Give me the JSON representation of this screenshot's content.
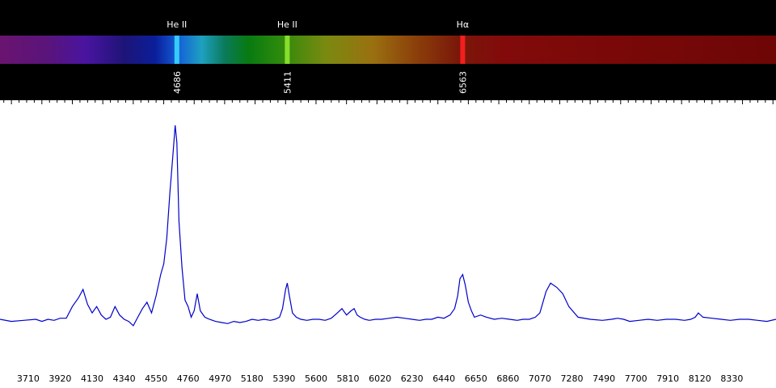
{
  "chart_data": {
    "type": "line",
    "title": "",
    "xlabel": "",
    "ylabel": "",
    "xlim": [
      3525,
      8620
    ],
    "ylim": [
      0,
      1
    ],
    "x_ticks": [
      3710,
      3920,
      4130,
      4340,
      4550,
      4760,
      4970,
      5180,
      5390,
      5600,
      5810,
      6020,
      6230,
      6440,
      6650,
      6860,
      7070,
      7280,
      7490,
      7700,
      7910,
      8120,
      8330
    ],
    "line_color": "#0000cc",
    "plot_background": "#ffffff",
    "spectrum_strip": true,
    "emission_lines": [
      {
        "name": "He II",
        "wavelength": "4686",
        "x": 4686
      },
      {
        "name": "He II",
        "wavelength": "5411",
        "x": 5411
      },
      {
        "name": "Hα",
        "wavelength": "6563",
        "x": 6563
      }
    ],
    "series": [
      {
        "x": [
          3525,
          3600,
          3680,
          3760,
          3800,
          3840,
          3880,
          3920,
          3960,
          4000,
          4040,
          4070,
          4100,
          4130,
          4160,
          4190,
          4220,
          4250,
          4280,
          4310,
          4340,
          4370,
          4400,
          4430,
          4460,
          4490,
          4520,
          4550,
          4580,
          4600,
          4620,
          4640,
          4660,
          4675,
          4686,
          4700,
          4720,
          4740,
          4760,
          4780,
          4800,
          4820,
          4840,
          4870,
          4900,
          4940,
          4980,
          5020,
          5060,
          5100,
          5140,
          5180,
          5220,
          5260,
          5300,
          5330,
          5360,
          5380,
          5400,
          5411,
          5425,
          5445,
          5470,
          5500,
          5540,
          5580,
          5620,
          5660,
          5700,
          5740,
          5770,
          5800,
          5830,
          5850,
          5870,
          5890,
          5920,
          5950,
          5990,
          6030,
          6080,
          6130,
          6180,
          6230,
          6280,
          6320,
          6360,
          6400,
          6440,
          6480,
          6510,
          6530,
          6545,
          6563,
          6580,
          6600,
          6620,
          6640,
          6680,
          6720,
          6770,
          6820,
          6870,
          6920,
          6960,
          7000,
          7040,
          7070,
          7090,
          7110,
          7140,
          7180,
          7220,
          7260,
          7320,
          7400,
          7480,
          7540,
          7580,
          7620,
          7660,
          7720,
          7780,
          7840,
          7900,
          7960,
          8020,
          8060,
          8090,
          8110,
          8140,
          8200,
          8260,
          8320,
          8380,
          8440,
          8500,
          8560,
          8620
        ],
        "y": [
          0.09,
          0.08,
          0.085,
          0.09,
          0.08,
          0.09,
          0.085,
          0.095,
          0.095,
          0.15,
          0.19,
          0.23,
          0.16,
          0.12,
          0.15,
          0.11,
          0.09,
          0.1,
          0.15,
          0.11,
          0.09,
          0.08,
          0.06,
          0.1,
          0.14,
          0.17,
          0.12,
          0.2,
          0.3,
          0.35,
          0.47,
          0.68,
          0.86,
          1.0,
          0.92,
          0.55,
          0.33,
          0.18,
          0.15,
          0.1,
          0.13,
          0.21,
          0.13,
          0.1,
          0.09,
          0.08,
          0.075,
          0.07,
          0.08,
          0.075,
          0.08,
          0.09,
          0.085,
          0.09,
          0.085,
          0.09,
          0.1,
          0.14,
          0.23,
          0.26,
          0.2,
          0.12,
          0.1,
          0.09,
          0.085,
          0.09,
          0.09,
          0.085,
          0.095,
          0.12,
          0.14,
          0.11,
          0.13,
          0.14,
          0.11,
          0.1,
          0.09,
          0.085,
          0.09,
          0.09,
          0.095,
          0.1,
          0.095,
          0.09,
          0.085,
          0.09,
          0.09,
          0.1,
          0.095,
          0.11,
          0.14,
          0.2,
          0.28,
          0.3,
          0.25,
          0.17,
          0.13,
          0.1,
          0.11,
          0.1,
          0.09,
          0.095,
          0.09,
          0.085,
          0.09,
          0.09,
          0.1,
          0.12,
          0.17,
          0.22,
          0.26,
          0.24,
          0.21,
          0.15,
          0.1,
          0.09,
          0.085,
          0.09,
          0.095,
          0.09,
          0.08,
          0.085,
          0.09,
          0.085,
          0.09,
          0.09,
          0.085,
          0.09,
          0.1,
          0.12,
          0.1,
          0.095,
          0.09,
          0.085,
          0.09,
          0.09,
          0.085,
          0.08,
          0.09
        ]
      }
    ]
  }
}
